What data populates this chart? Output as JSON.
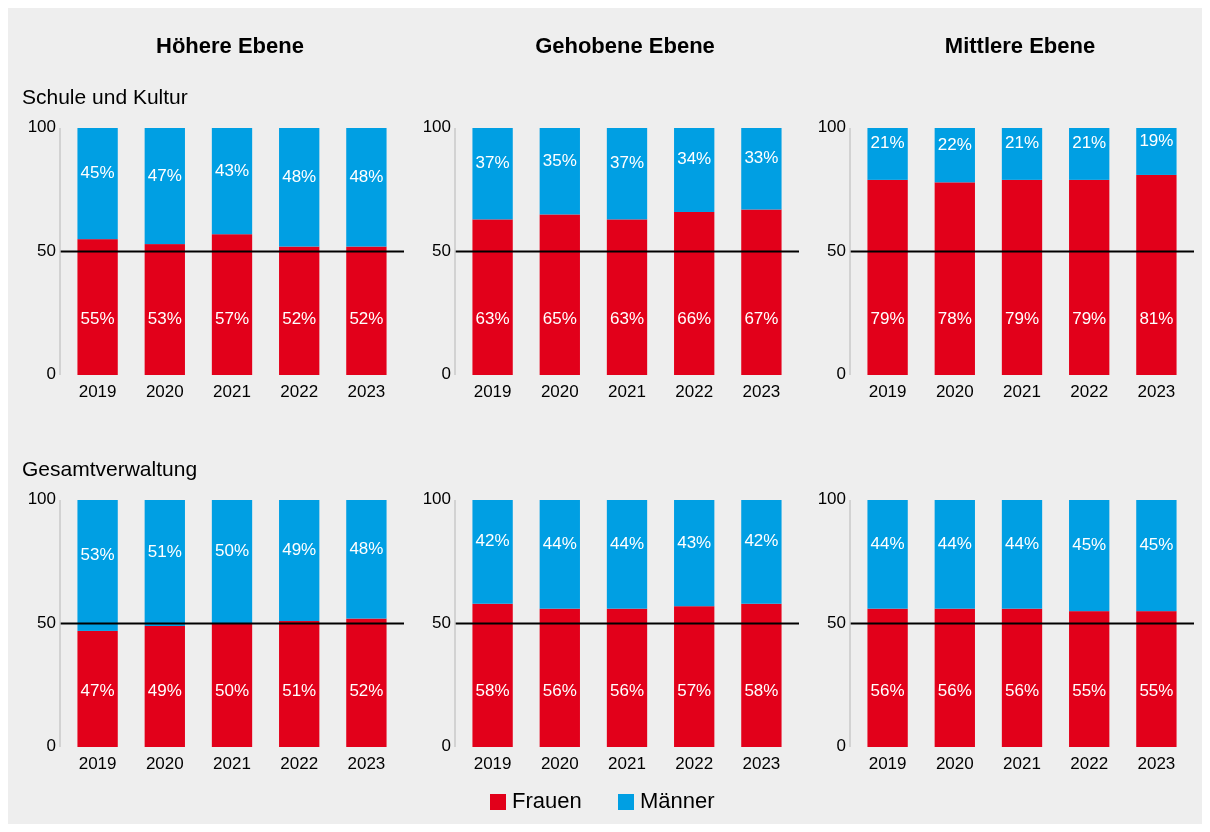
{
  "chart_data": [
    {
      "type": "bar",
      "stacked": true,
      "title": "Höhere Ebene",
      "subtitle": "Schule und Kultur",
      "categories": [
        "2019",
        "2020",
        "2021",
        "2022",
        "2023"
      ],
      "ylim": [
        0,
        100
      ],
      "yticks": [
        0,
        50,
        100
      ],
      "ref_lines": [
        {
          "axis": "y",
          "value": 50,
          "color": "#000000"
        }
      ],
      "series": [
        {
          "color": "#e2001a",
          "values": [
            55,
            53,
            57,
            52,
            52
          ],
          "value_labels": [
            "55%",
            "53%",
            "57%",
            "52%",
            "52%"
          ]
        },
        {
          "color": "#009fe3",
          "values": [
            45,
            47,
            43,
            48,
            48
          ],
          "value_labels": [
            "45%",
            "47%",
            "43%",
            "48%",
            "48%"
          ]
        }
      ]
    },
    {
      "type": "bar",
      "stacked": true,
      "title": "Gehobene Ebene",
      "categories": [
        "2019",
        "2020",
        "2021",
        "2022",
        "2023"
      ],
      "ylim": [
        0,
        100
      ],
      "yticks": [
        0,
        50,
        100
      ],
      "ref_lines": [
        {
          "axis": "y",
          "value": 50,
          "color": "#000000"
        }
      ],
      "series": [
        {
          "color": "#e2001a",
          "values": [
            63,
            65,
            63,
            66,
            67
          ],
          "value_labels": [
            "63%",
            "65%",
            "63%",
            "66%",
            "67%"
          ]
        },
        {
          "color": "#009fe3",
          "values": [
            37,
            35,
            37,
            34,
            33
          ],
          "value_labels": [
            "37%",
            "35%",
            "37%",
            "34%",
            "33%"
          ]
        }
      ]
    },
    {
      "type": "bar",
      "stacked": true,
      "title": "Mittlere Ebene",
      "categories": [
        "2019",
        "2020",
        "2021",
        "2022",
        "2023"
      ],
      "ylim": [
        0,
        100
      ],
      "yticks": [
        0,
        50,
        100
      ],
      "ref_lines": [
        {
          "axis": "y",
          "value": 50,
          "color": "#000000"
        }
      ],
      "series": [
        {
          "color": "#e2001a",
          "values": [
            79,
            78,
            79,
            79,
            81
          ],
          "value_labels": [
            "79%",
            "78%",
            "79%",
            "79%",
            "81%"
          ]
        },
        {
          "color": "#009fe3",
          "values": [
            21,
            22,
            21,
            21,
            19
          ],
          "value_labels": [
            "21%",
            "22%",
            "21%",
            "21%",
            "19%"
          ]
        }
      ]
    },
    {
      "type": "bar",
      "stacked": true,
      "subtitle": "Gesamtverwaltung",
      "categories": [
        "2019",
        "2020",
        "2021",
        "2022",
        "2023"
      ],
      "ylim": [
        0,
        100
      ],
      "yticks": [
        0,
        50,
        100
      ],
      "ref_lines": [
        {
          "axis": "y",
          "value": 50,
          "color": "#000000"
        }
      ],
      "series": [
        {
          "color": "#e2001a",
          "values": [
            47,
            49,
            50,
            51,
            52
          ],
          "value_labels": [
            "47%",
            "49%",
            "50%",
            "51%",
            "52%"
          ]
        },
        {
          "color": "#009fe3",
          "values": [
            53,
            51,
            50,
            49,
            48
          ],
          "value_labels": [
            "53%",
            "51%",
            "50%",
            "49%",
            "48%"
          ]
        }
      ]
    },
    {
      "type": "bar",
      "stacked": true,
      "categories": [
        "2019",
        "2020",
        "2021",
        "2022",
        "2023"
      ],
      "ylim": [
        0,
        100
      ],
      "yticks": [
        0,
        50,
        100
      ],
      "ref_lines": [
        {
          "axis": "y",
          "value": 50,
          "color": "#000000"
        }
      ],
      "series": [
        {
          "color": "#e2001a",
          "values": [
            58,
            56,
            56,
            57,
            58
          ],
          "value_labels": [
            "58%",
            "56%",
            "56%",
            "57%",
            "58%"
          ]
        },
        {
          "color": "#009fe3",
          "values": [
            42,
            44,
            44,
            43,
            42
          ],
          "value_labels": [
            "42%",
            "44%",
            "44%",
            "43%",
            "42%"
          ]
        }
      ]
    },
    {
      "type": "bar",
      "stacked": true,
      "legend": "bottom",
      "categories": [
        "2019",
        "2020",
        "2021",
        "2022",
        "2023"
      ],
      "ylim": [
        0,
        100
      ],
      "yticks": [
        0,
        50,
        100
      ],
      "ref_lines": [
        {
          "axis": "y",
          "value": 50,
          "color": "#000000"
        }
      ],
      "series": [
        {
          "name": "Frauen",
          "color": "#e2001a",
          "values": [
            56,
            56,
            56,
            55,
            55
          ],
          "value_labels": [
            "56%",
            "56%",
            "56%",
            "55%",
            "55%"
          ]
        },
        {
          "name": "Männer",
          "color": "#009fe3",
          "values": [
            44,
            44,
            44,
            45,
            45
          ],
          "value_labels": [
            "44%",
            "44%",
            "44%",
            "45%",
            "45%"
          ]
        }
      ]
    }
  ]
}
